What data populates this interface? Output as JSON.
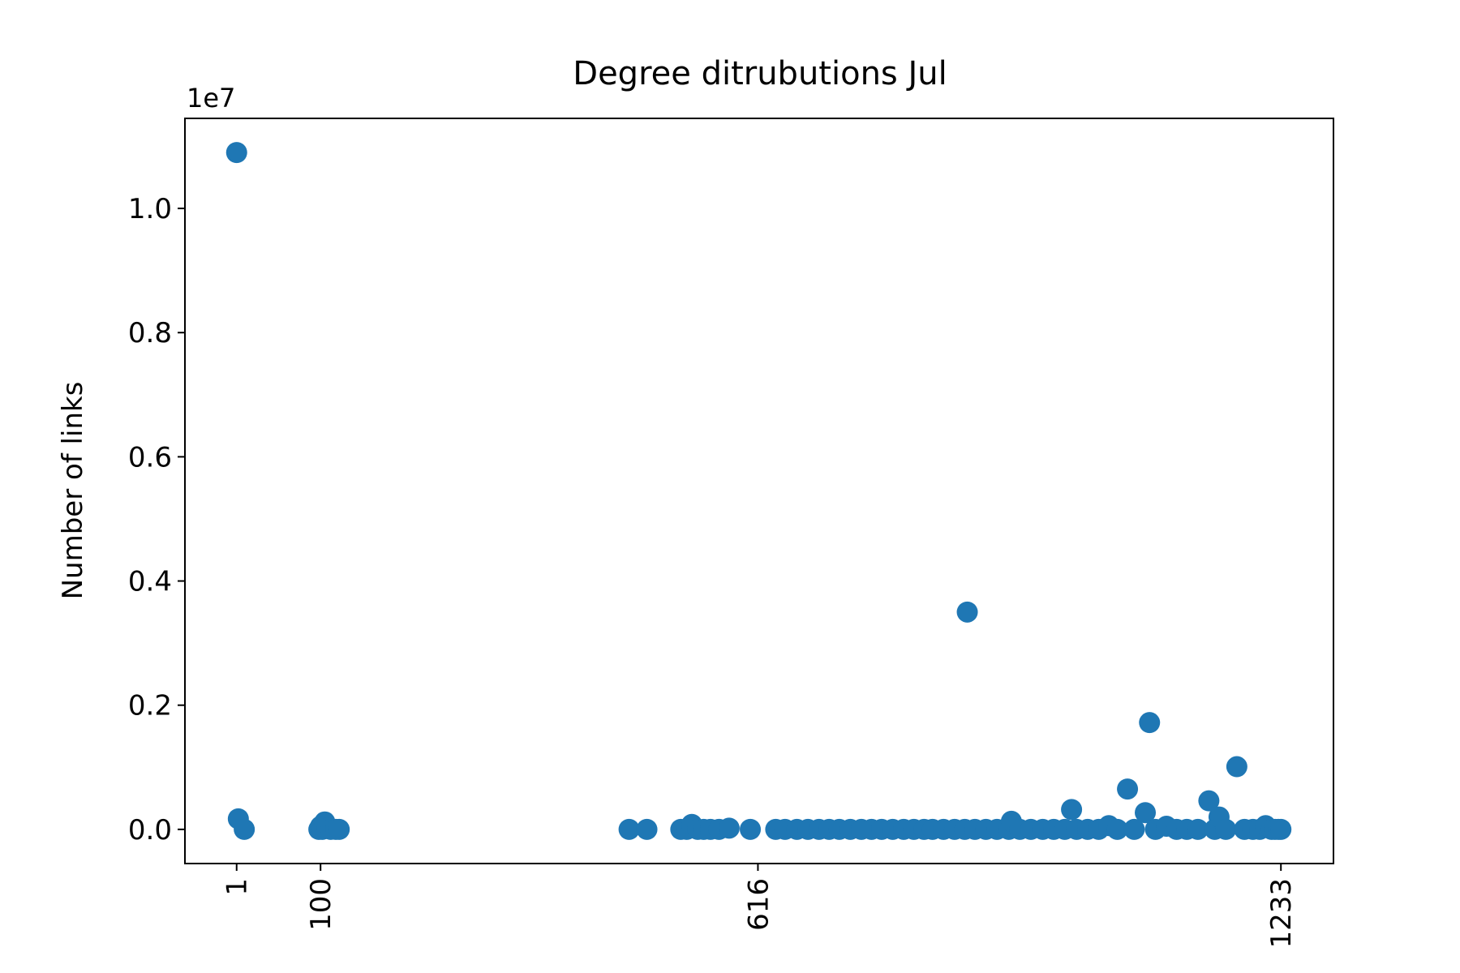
{
  "chart_data": {
    "type": "scatter",
    "title": "Degree ditrubutions Jul",
    "xlabel": "",
    "ylabel": "Number of links",
    "y_offset_label": "1e7",
    "xlim": [
      -60,
      1295
    ],
    "ylim": [
      -550000,
      11450000
    ],
    "x_ticks": [
      1,
      100,
      616,
      1233
    ],
    "x_tick_labels": [
      "1",
      "100",
      "616",
      "1233"
    ],
    "y_ticks": [
      0,
      2000000,
      4000000,
      6000000,
      8000000,
      10000000
    ],
    "y_tick_labels": [
      "0.0",
      "0.2",
      "0.4",
      "0.6",
      "0.8",
      "1.0"
    ],
    "grid": false,
    "marker_color": "#1f77b4",
    "points": [
      [
        1,
        10900000
      ],
      [
        3,
        170000
      ],
      [
        10,
        0
      ],
      [
        98,
        0
      ],
      [
        100,
        50000
      ],
      [
        102,
        0
      ],
      [
        105,
        120000
      ],
      [
        108,
        20000
      ],
      [
        112,
        0
      ],
      [
        118,
        0
      ],
      [
        122,
        0
      ],
      [
        464,
        0
      ],
      [
        485,
        0
      ],
      [
        525,
        0
      ],
      [
        532,
        0
      ],
      [
        538,
        80000
      ],
      [
        545,
        0
      ],
      [
        552,
        0
      ],
      [
        560,
        0
      ],
      [
        570,
        0
      ],
      [
        582,
        20000
      ],
      [
        607,
        0
      ],
      [
        637,
        0
      ],
      [
        648,
        0
      ],
      [
        662,
        0
      ],
      [
        675,
        0
      ],
      [
        688,
        0
      ],
      [
        700,
        0
      ],
      [
        712,
        0
      ],
      [
        725,
        0
      ],
      [
        738,
        0
      ],
      [
        750,
        0
      ],
      [
        762,
        0
      ],
      [
        775,
        0
      ],
      [
        788,
        0
      ],
      [
        800,
        0
      ],
      [
        812,
        0
      ],
      [
        822,
        0
      ],
      [
        835,
        0
      ],
      [
        848,
        0
      ],
      [
        860,
        0
      ],
      [
        863,
        3500000
      ],
      [
        872,
        0
      ],
      [
        885,
        0
      ],
      [
        898,
        0
      ],
      [
        912,
        0
      ],
      [
        915,
        130000
      ],
      [
        925,
        0
      ],
      [
        938,
        0
      ],
      [
        952,
        0
      ],
      [
        965,
        0
      ],
      [
        986,
        320000
      ],
      [
        978,
        0
      ],
      [
        992,
        0
      ],
      [
        1005,
        0
      ],
      [
        1018,
        0
      ],
      [
        1030,
        60000
      ],
      [
        1040,
        0
      ],
      [
        1052,
        650000
      ],
      [
        1060,
        0
      ],
      [
        1073,
        270000
      ],
      [
        1078,
        1720000
      ],
      [
        1085,
        0
      ],
      [
        1098,
        50000
      ],
      [
        1110,
        0
      ],
      [
        1122,
        0
      ],
      [
        1135,
        0
      ],
      [
        1148,
        460000
      ],
      [
        1155,
        0
      ],
      [
        1160,
        200000
      ],
      [
        1168,
        0
      ],
      [
        1181,
        1010000
      ],
      [
        1190,
        0
      ],
      [
        1200,
        0
      ],
      [
        1208,
        0
      ],
      [
        1215,
        60000
      ],
      [
        1222,
        0
      ],
      [
        1226,
        0
      ],
      [
        1230,
        0
      ],
      [
        1233,
        0
      ]
    ]
  }
}
